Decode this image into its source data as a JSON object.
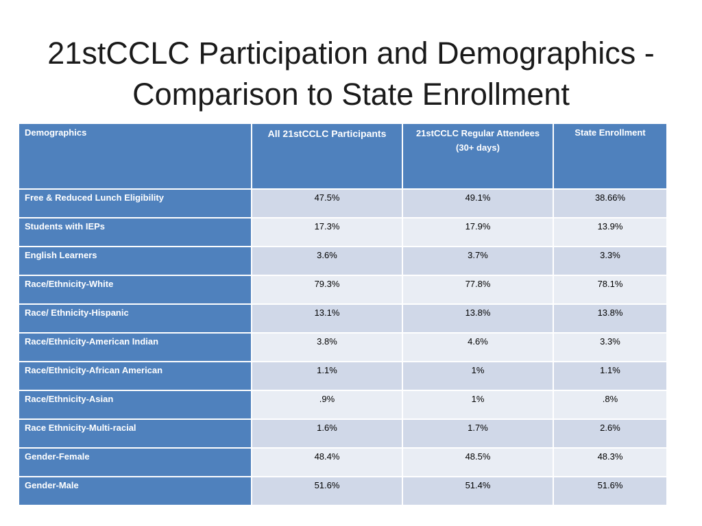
{
  "slide": {
    "title_lines": [
      "21stCCLC Participation and Demographics -",
      "Comparison to State Enrollment"
    ]
  },
  "table": {
    "headers": {
      "demographics": "Demographics",
      "all_participants": "All 21stCCLC Participants",
      "regular_attendees": [
        "21stCCLC Regular Attendees",
        "(30+ days)"
      ],
      "state_enrollment": "State Enrollment"
    },
    "rows": [
      {
        "label": "Free & Reduced Lunch Eligibility",
        "all_participants": "47.5%",
        "regular_attendees": "49.1%",
        "state_enrollment": "38.66%"
      },
      {
        "label": "Students with IEPs",
        "all_participants": "17.3%",
        "regular_attendees": "17.9%",
        "state_enrollment": "13.9%"
      },
      {
        "label": "English Learners",
        "all_participants": "3.6%",
        "regular_attendees": "3.7%",
        "state_enrollment": "3.3%"
      },
      {
        "label": "Race/Ethnicity-White",
        "all_participants": "79.3%",
        "regular_attendees": "77.8%",
        "state_enrollment": "78.1%"
      },
      {
        "label": "Race/ Ethnicity-Hispanic",
        "all_participants": "13.1%",
        "regular_attendees": "13.8%",
        "state_enrollment": "13.8%"
      },
      {
        "label": "Race/Ethnicity-American Indian",
        "all_participants": "3.8%",
        "regular_attendees": "4.6%",
        "state_enrollment": "3.3%"
      },
      {
        "label": "Race/Ethnicity-African American",
        "all_participants": "1.1%",
        "regular_attendees": "1%",
        "state_enrollment": "1.1%"
      },
      {
        "label": "Race/Ethnicity-Asian",
        "all_participants": ".9%",
        "regular_attendees": "1%",
        "state_enrollment": ".8%"
      },
      {
        "label": "Race Ethnicity-Multi-racial",
        "all_participants": "1.6%",
        "regular_attendees": "1.7%",
        "state_enrollment": "2.6%"
      },
      {
        "label": "Gender-Female",
        "all_participants": "48.4%",
        "regular_attendees": "48.5%",
        "state_enrollment": "48.3%"
      },
      {
        "label": "Gender-Male",
        "all_participants": "51.6%",
        "regular_attendees": "51.4%",
        "state_enrollment": "51.6%"
      }
    ]
  },
  "colors": {
    "header_bg": "#4F81BD",
    "band_dark": "#D0D8E8",
    "band_light": "#E9EDF4",
    "title_text": "#1A1A1A",
    "header_text": "#FFFFFF",
    "cell_text": "#000000"
  }
}
